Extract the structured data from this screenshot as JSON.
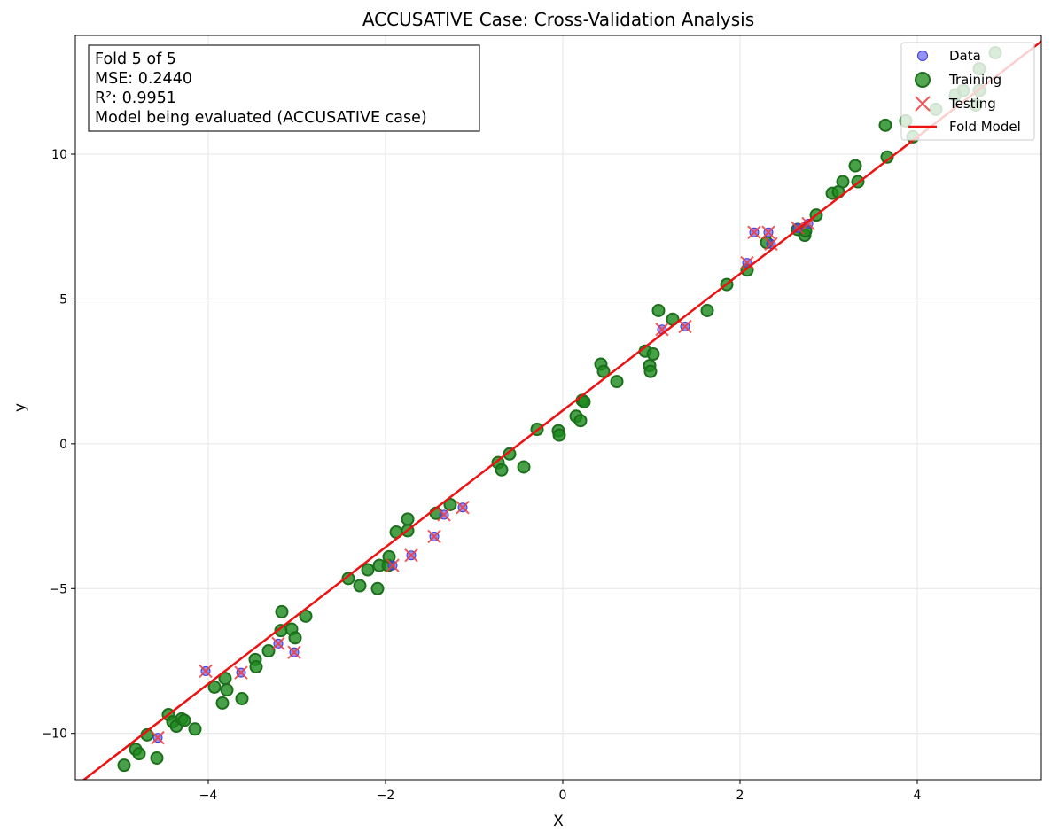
{
  "chart_data": {
    "type": "scatter",
    "title": "ACCUSATIVE Case: Cross-Validation Analysis",
    "xlabel": "X",
    "ylabel": "y",
    "xlim": [
      -5.5,
      5.4
    ],
    "ylim": [
      -11.6,
      14.1
    ],
    "xticks": [
      -4,
      -2,
      0,
      2,
      4
    ],
    "xtick_labels": [
      "−4",
      "−2",
      "0",
      "2",
      "4"
    ],
    "yticks": [
      -10,
      -5,
      0,
      5,
      10
    ],
    "ytick_labels": [
      "−10",
      "−5",
      "0",
      "5",
      "10"
    ],
    "grid": true,
    "legend_position": "top-right",
    "legend": [
      "Data",
      "Training",
      "Testing",
      "Fold Model"
    ],
    "annotation": [
      "Fold 5 of 5",
      "MSE: 0.2440",
      "R²: 0.9951",
      "Model being evaluated (ACCUSATIVE case)"
    ],
    "colors": {
      "data": "#4b4bf0",
      "training": "#1a8a1a",
      "training_edge": "#1c6e1c",
      "testing": "#f03c3c",
      "model": "#ee1111"
    },
    "model": {
      "slope": 2.36,
      "intercept": 1.15
    },
    "training": [
      [
        -4.95,
        -11.1
      ],
      [
        -4.82,
        -10.55
      ],
      [
        -4.78,
        -10.7
      ],
      [
        -4.69,
        -10.05
      ],
      [
        -4.58,
        -10.85
      ],
      [
        -4.45,
        -9.35
      ],
      [
        -4.4,
        -9.6
      ],
      [
        -4.36,
        -9.75
      ],
      [
        -4.3,
        -9.5
      ],
      [
        -4.27,
        -9.55
      ],
      [
        -4.15,
        -9.85
      ],
      [
        -3.93,
        -8.4
      ],
      [
        -3.84,
        -8.95
      ],
      [
        -3.81,
        -8.1
      ],
      [
        -3.79,
        -8.5
      ],
      [
        -3.62,
        -8.8
      ],
      [
        -3.47,
        -7.45
      ],
      [
        -3.46,
        -7.7
      ],
      [
        -3.32,
        -7.15
      ],
      [
        -3.18,
        -6.45
      ],
      [
        -3.17,
        -5.8
      ],
      [
        -3.06,
        -6.4
      ],
      [
        -3.02,
        -6.7
      ],
      [
        -2.9,
        -5.95
      ],
      [
        -2.42,
        -4.65
      ],
      [
        -2.29,
        -4.9
      ],
      [
        -2.2,
        -4.35
      ],
      [
        -2.09,
        -5.0
      ],
      [
        -2.07,
        -4.2
      ],
      [
        -1.97,
        -4.2
      ],
      [
        -1.96,
        -3.9
      ],
      [
        -1.88,
        -3.05
      ],
      [
        -1.75,
        -2.6
      ],
      [
        -1.75,
        -3.0
      ],
      [
        -1.43,
        -2.4
      ],
      [
        -1.27,
        -2.1
      ],
      [
        -0.73,
        -0.65
      ],
      [
        -0.69,
        -0.9
      ],
      [
        -0.6,
        -0.35
      ],
      [
        -0.44,
        -0.8
      ],
      [
        -0.29,
        0.5
      ],
      [
        -0.05,
        0.45
      ],
      [
        -0.04,
        0.3
      ],
      [
        0.15,
        0.95
      ],
      [
        0.2,
        0.8
      ],
      [
        0.22,
        1.5
      ],
      [
        0.24,
        1.45
      ],
      [
        0.43,
        2.75
      ],
      [
        0.46,
        2.5
      ],
      [
        0.61,
        2.15
      ],
      [
        0.93,
        3.2
      ],
      [
        0.98,
        2.7
      ],
      [
        0.99,
        2.5
      ],
      [
        1.02,
        3.1
      ],
      [
        1.08,
        4.6
      ],
      [
        1.24,
        4.3
      ],
      [
        1.63,
        4.6
      ],
      [
        1.85,
        5.5
      ],
      [
        2.08,
        6.0
      ],
      [
        2.3,
        6.95
      ],
      [
        2.65,
        7.4
      ],
      [
        2.73,
        7.2
      ],
      [
        2.74,
        7.35
      ],
      [
        2.86,
        7.9
      ],
      [
        3.04,
        8.65
      ],
      [
        3.11,
        8.7
      ],
      [
        3.16,
        9.05
      ],
      [
        3.3,
        9.6
      ],
      [
        3.33,
        9.05
      ],
      [
        3.64,
        11.0
      ],
      [
        3.66,
        9.9
      ],
      [
        3.87,
        11.15
      ],
      [
        3.95,
        10.6
      ],
      [
        4.21,
        11.55
      ],
      [
        4.43,
        12.05
      ],
      [
        4.52,
        12.2
      ],
      [
        4.66,
        11.7
      ],
      [
        4.7,
        12.95
      ],
      [
        4.7,
        12.2
      ],
      [
        4.88,
        13.5
      ]
    ],
    "testing": [
      [
        -4.57,
        -10.15
      ],
      [
        -4.03,
        -7.85
      ],
      [
        -3.63,
        -7.9
      ],
      [
        -3.21,
        -6.9
      ],
      [
        -3.03,
        -7.2
      ],
      [
        -1.92,
        -4.2
      ],
      [
        -1.71,
        -3.85
      ],
      [
        -1.45,
        -3.2
      ],
      [
        -1.34,
        -2.45
      ],
      [
        -1.13,
        -2.2
      ],
      [
        1.12,
        3.95
      ],
      [
        1.38,
        4.05
      ],
      [
        2.08,
        6.25
      ],
      [
        2.16,
        7.3
      ],
      [
        2.32,
        7.3
      ],
      [
        2.35,
        6.9
      ],
      [
        2.65,
        7.45
      ],
      [
        2.77,
        7.6
      ]
    ]
  }
}
